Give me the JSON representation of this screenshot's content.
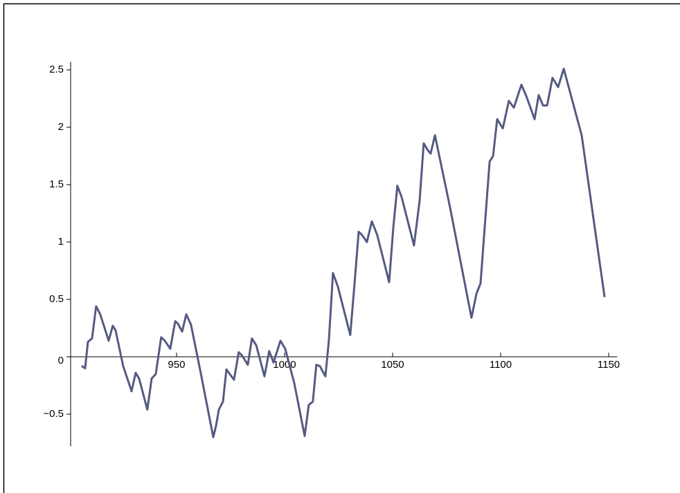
{
  "chart_data": {
    "type": "line",
    "x": [
      906.1,
      907.7,
      909,
      910.9,
      912.8,
      914.7,
      918.6,
      920.5,
      921.8,
      925.3,
      929.2,
      931.1,
      932.7,
      936.5,
      938.5,
      940.4,
      942.9,
      944.6,
      947.1,
      949.4,
      950.6,
      952.6,
      954.5,
      956.7,
      961.2,
      967,
      968.3,
      969.6,
      971.5,
      973.1,
      976.6,
      978.8,
      980.4,
      983,
      984.9,
      986.9,
      990.7,
      992.9,
      994.9,
      998.1,
      1000.3,
      1004.5,
      1009.3,
      1011.2,
      1013.1,
      1014.7,
      1016.3,
      1018.9,
      1020.5,
      1022.4,
      1024.7,
      1030.4,
      1032.4,
      1034.3,
      1035.9,
      1038.1,
      1040.4,
      1042.9,
      1048.4,
      1050.3,
      1052.2,
      1054.2,
      1059.9,
      1062.5,
      1064.4,
      1066.3,
      1067.6,
      1069.6,
      1076.6,
      1086.5,
      1088.8,
      1090.7,
      1093.3,
      1094.9,
      1096.5,
      1098.4,
      1101,
      1103.8,
      1106.1,
      1109.6,
      1111.9,
      1115.7,
      1117.6,
      1119.6,
      1121.5,
      1124,
      1126.6,
      1129.2,
      1137.5,
      1148.1
    ],
    "series": [
      {
        "color": "#555a82",
        "values": [
          -0.08,
          -0.1,
          0.13,
          0.16,
          0.44,
          0.37,
          0.14,
          0.27,
          0.23,
          -0.08,
          -0.3,
          -0.14,
          -0.19,
          -0.46,
          -0.19,
          -0.15,
          0.17,
          0.14,
          0.07,
          0.31,
          0.29,
          0.22,
          0.37,
          0.28,
          -0.14,
          -0.7,
          -0.6,
          -0.46,
          -0.39,
          -0.11,
          -0.2,
          0.04,
          0.01,
          -0.07,
          0.16,
          0.1,
          -0.17,
          0.05,
          -0.05,
          0.14,
          0.07,
          -0.23,
          -0.69,
          -0.42,
          -0.39,
          -0.07,
          -0.08,
          -0.17,
          0.14,
          0.73,
          0.61,
          0.19,
          0.64,
          1.09,
          1.06,
          1.0,
          1.18,
          1.06,
          0.65,
          1.12,
          1.49,
          1.39,
          0.97,
          1.36,
          1.86,
          1.8,
          1.77,
          1.93,
          1.3,
          0.34,
          0.55,
          0.64,
          1.3,
          1.7,
          1.75,
          2.07,
          1.99,
          2.23,
          2.17,
          2.37,
          2.27,
          2.07,
          2.28,
          2.19,
          2.19,
          2.43,
          2.35,
          2.51,
          1.93,
          0.52
        ]
      }
    ],
    "xlim": [
      901,
      1154
    ],
    "ylim": [
      -0.78,
      2.57
    ],
    "xticks": [
      950,
      1000,
      1050,
      1100,
      1150
    ],
    "yticks": [
      {
        "value": -0.5,
        "label": "−0.5"
      },
      0,
      0.5,
      1,
      1.5,
      2,
      2.5
    ]
  }
}
